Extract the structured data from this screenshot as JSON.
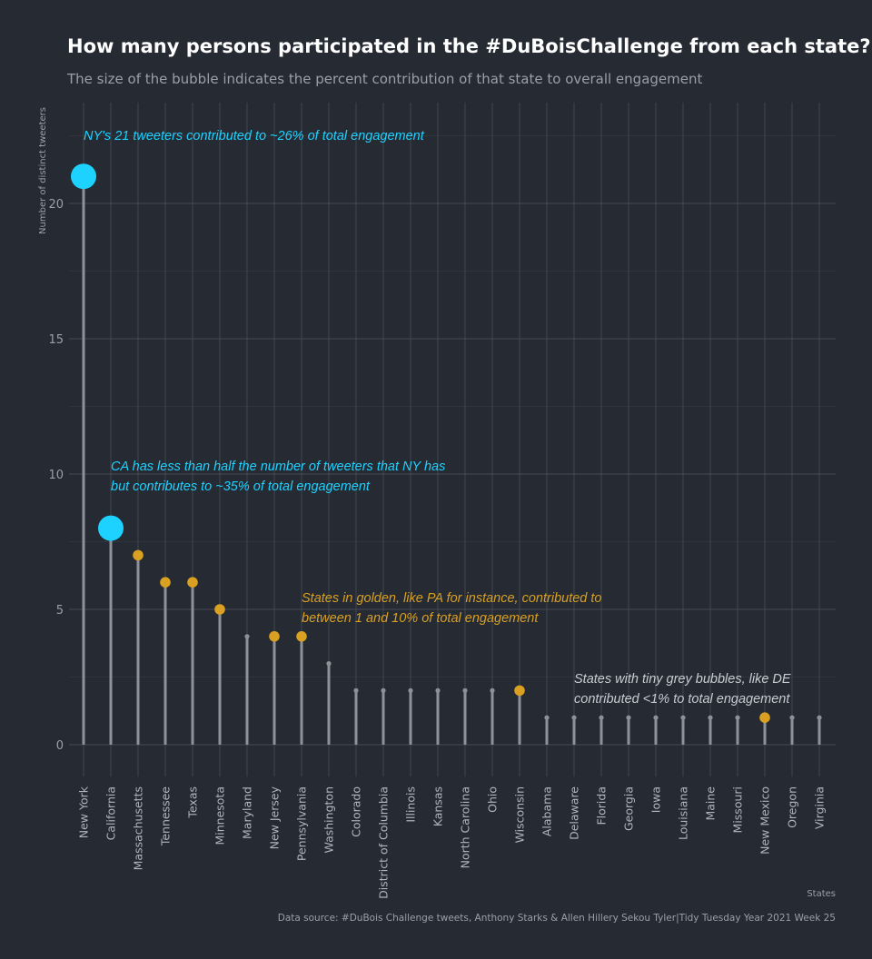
{
  "colors": {
    "background": "#252a33",
    "highlight": "#1ed2ff",
    "golden": "#d9a021",
    "grey": "#8e9298",
    "annotation_grey": "#c8ccd2"
  },
  "chart_data": {
    "type": "lollipop",
    "title": "How many persons participated in the #DuBoisChallenge from each state?",
    "subtitle": "The size of the bubble indicates the percent contribution of that state to overall engagement",
    "xlabel": "States",
    "ylabel": "Number of distinct tweeters",
    "ylim": [
      0,
      23
    ],
    "y_ticks": [
      0,
      5,
      10,
      15,
      20
    ],
    "grid": true,
    "categories": [
      "New York",
      "California",
      "Massachusetts",
      "Tennessee",
      "Texas",
      "Minnesota",
      "Maryland",
      "New Jersey",
      "Pennsylvania",
      "Washington",
      "Colorado",
      "District of Columbia",
      "Illinois",
      "Kansas",
      "North Carolina",
      "Ohio",
      "Wisconsin",
      "Alabama",
      "Delaware",
      "Florida",
      "Georgia",
      "Iowa",
      "Louisiana",
      "Maine",
      "Missouri",
      "New Mexico",
      "Oregon",
      "Virginia"
    ],
    "values": [
      21,
      8,
      7,
      6,
      6,
      5,
      4,
      4,
      4,
      3,
      2,
      2,
      2,
      2,
      2,
      2,
      2,
      1,
      1,
      1,
      1,
      1,
      1,
      1,
      1,
      1,
      1,
      1
    ],
    "groups": [
      "highlight",
      "highlight",
      "golden",
      "golden",
      "golden",
      "golden",
      "grey",
      "golden",
      "golden",
      "grey",
      "grey",
      "grey",
      "grey",
      "grey",
      "grey",
      "grey",
      "golden",
      "grey",
      "grey",
      "grey",
      "grey",
      "grey",
      "grey",
      "grey",
      "grey",
      "golden",
      "grey",
      "grey"
    ],
    "annotations": [
      {
        "lines": [
          "NY's 21 tweeters contributed to ~26% of total engagement"
        ],
        "color": "highlight"
      },
      {
        "lines": [
          "CA has less than half the number of tweeters that NY has",
          "but contributes to  ~35% of total engagement"
        ],
        "color": "highlight"
      },
      {
        "lines": [
          "States in golden, like PA for instance, contributed to",
          "between 1 and 10% of total engagement"
        ],
        "color": "golden"
      },
      {
        "lines": [
          "States with tiny grey bubbles, like DE",
          "contributed <1% to total engagement"
        ],
        "color": "annotation_grey"
      }
    ],
    "caption": "Data source: #DuBois Challenge tweets, Anthony Starks & Allen Hillery Sekou Tyler|Tidy Tuesday Year 2021 Week 25"
  }
}
